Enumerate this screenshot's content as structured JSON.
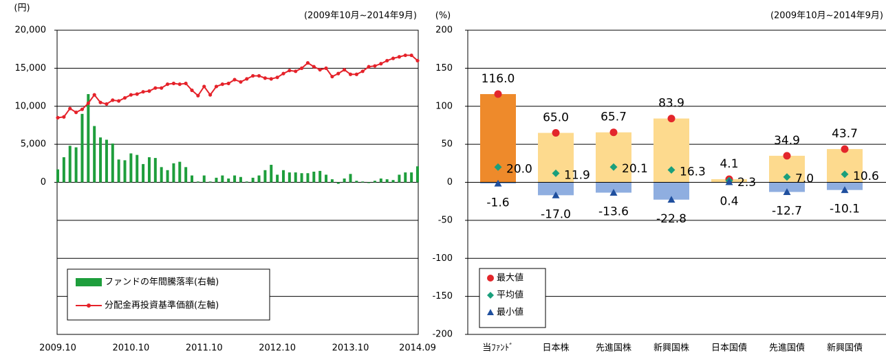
{
  "chart_data": [
    {
      "type": "combo",
      "y_label": "(円)",
      "subtitle": "(2009年10月~2014年9月)",
      "categories": [
        "2009.10",
        null,
        null,
        null,
        null,
        null,
        null,
        null,
        null,
        null,
        null,
        null,
        "2010.10",
        null,
        null,
        null,
        null,
        null,
        null,
        null,
        null,
        null,
        null,
        null,
        "2011.10",
        null,
        null,
        null,
        null,
        null,
        null,
        null,
        null,
        null,
        null,
        null,
        "2012.10",
        null,
        null,
        null,
        null,
        null,
        null,
        null,
        null,
        null,
        null,
        null,
        "2013.10",
        null,
        null,
        null,
        null,
        null,
        null,
        null,
        null,
        null,
        null,
        "2014.09"
      ],
      "series": [
        {
          "name": "ファンドの年間騰落率(右軸)",
          "type": "bar",
          "axis": "y2",
          "color": "#1e9e3c",
          "values": [
            17,
            33,
            48,
            46,
            90,
            116,
            74,
            59,
            56,
            51,
            30,
            29,
            38,
            36,
            24,
            33,
            32,
            20,
            16,
            25,
            27,
            20,
            9,
            1,
            9,
            1,
            6,
            9,
            5,
            9,
            7,
            1,
            6,
            9,
            16,
            23,
            10,
            16,
            13,
            13,
            12,
            12,
            14,
            15,
            10,
            4,
            -2,
            5,
            11,
            2,
            1,
            -1,
            2,
            5,
            4,
            3,
            10,
            13,
            13,
            21
          ]
        },
        {
          "name": "分配金再投資基準価額(左軸)",
          "type": "line",
          "color": "#e5222a",
          "values": [
            8500,
            8600,
            9700,
            9200,
            9600,
            10400,
            11500,
            10500,
            10300,
            10800,
            10700,
            11100,
            11500,
            11600,
            11900,
            12000,
            12400,
            12400,
            12900,
            13000,
            12900,
            13000,
            12100,
            11400,
            12600,
            11500,
            12600,
            12900,
            13000,
            13500,
            13200,
            13600,
            14000,
            14000,
            13700,
            13600,
            13800,
            14300,
            14700,
            14600,
            15000,
            15700,
            15200,
            14800,
            15000,
            13900,
            14300,
            14800,
            14200,
            14200,
            14600,
            15200,
            15300,
            15600,
            16000,
            16300,
            16500,
            16700,
            16700,
            16000
          ]
        }
      ],
      "ylim": [
        -20000,
        20000
      ],
      "yticks": [
        0,
        {
          "value": 5000,
          "label": "5,000"
        },
        {
          "value": 10000,
          "label": "10,000"
        },
        {
          "value": 15000,
          "label": "15,000"
        },
        {
          "value": 20000,
          "label": "20,000"
        }
      ],
      "y2lim": [
        -200,
        200
      ],
      "y2ticks": [
        -200,
        -150,
        -100,
        -50,
        0,
        50,
        100,
        150,
        200
      ],
      "grid": true
    },
    {
      "type": "range_bar",
      "y_label": "(%)",
      "subtitle": "(2009年10月~2014年9月)",
      "categories": [
        "当ﾌｧﾝﾄﾞ",
        "日本株",
        "先進国株",
        "新興国株",
        "日本国債",
        "先進国債",
        "新興国債"
      ],
      "series": [
        {
          "name": "最大値",
          "marker": "circle",
          "color": "#e3262b",
          "bar_colors": [
            "#ee8a2b",
            "#fdda8e",
            "#fdda8e",
            "#fdda8e",
            "#fdda8e",
            "#fdda8e",
            "#fdda8e"
          ],
          "values": [
            116.0,
            65.0,
            65.7,
            83.9,
            4.1,
            34.9,
            43.7
          ],
          "value_labels": [
            "116.0",
            "65.0",
            "65.7",
            "83.9",
            "4.1",
            "34.9",
            "43.7"
          ]
        },
        {
          "name": "平均値",
          "marker": "diamond",
          "color": "#1a9f7c",
          "values": [
            20.0,
            11.9,
            20.1,
            16.3,
            2.3,
            7.0,
            10.6
          ],
          "value_labels": [
            "20.0",
            "11.9",
            "20.1",
            "16.3",
            "2.3",
            "7.0",
            "10.6"
          ]
        },
        {
          "name": "最小値",
          "marker": "triangle",
          "color": "#1f4f9e",
          "bar_color": "#8faee0",
          "values": [
            -1.6,
            -17.0,
            -13.6,
            -22.8,
            0.4,
            -12.7,
            -10.1
          ],
          "value_labels": [
            "-1.6",
            "-17.0",
            "-13.6",
            "-22.8",
            "0.4",
            "-12.7",
            "-10.1"
          ]
        }
      ],
      "ylim": [
        -200,
        200
      ],
      "yticks": [
        -200,
        -150,
        -100,
        -50,
        0,
        50,
        100,
        150,
        200
      ],
      "grid": true
    }
  ]
}
